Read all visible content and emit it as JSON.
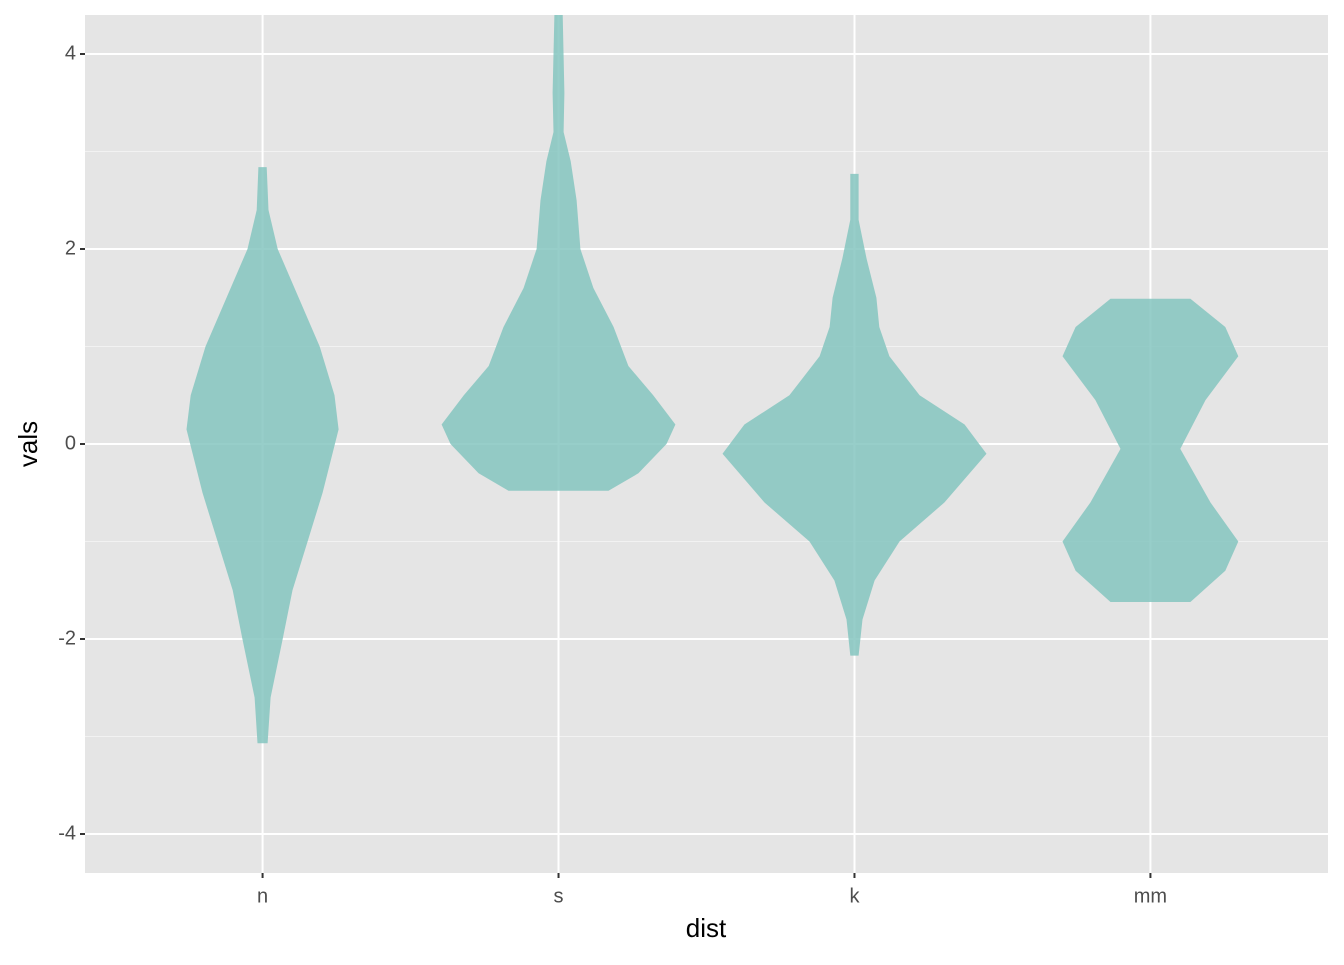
{
  "chart_data": {
    "type": "violin",
    "x_label": "dist",
    "y_label": "vals",
    "categories": [
      "n",
      "s",
      "k",
      "mm"
    ],
    "color": "#85c6bf",
    "violins": [
      {
        "y": [
          -3.07,
          -2.6,
          -2.0,
          -1.5,
          -1.0,
          -0.5,
          0.15,
          0.5,
          1.0,
          1.5,
          2.0,
          2.4,
          2.84
        ],
        "width": [
          0.017,
          0.027,
          0.068,
          0.101,
          0.152,
          0.203,
          0.257,
          0.243,
          0.193,
          0.122,
          0.051,
          0.02,
          0.014
        ]
      },
      {
        "y": [
          -0.48,
          -0.3,
          0,
          0.2,
          0.5,
          0.8,
          1.2,
          1.6,
          2.0,
          2.5,
          2.9,
          3.2,
          3.6,
          4.4
        ],
        "width": [
          0.169,
          0.27,
          0.365,
          0.395,
          0.32,
          0.236,
          0.186,
          0.118,
          0.074,
          0.061,
          0.041,
          0.017,
          0.02,
          0.014
        ]
      },
      {
        "y": [
          -2.17,
          -1.8,
          -1.4,
          -1.0,
          -0.6,
          -0.1,
          0.2,
          0.5,
          0.9,
          1.2,
          1.5,
          1.9,
          2.3,
          2.77
        ],
        "width": [
          0.014,
          0.027,
          0.068,
          0.152,
          0.304,
          0.446,
          0.372,
          0.22,
          0.118,
          0.084,
          0.074,
          0.041,
          0.014,
          0.014
        ]
      },
      {
        "y": [
          -1.62,
          -1.3,
          -1.0,
          -0.6,
          -0.05,
          0.45,
          0.9,
          1.2,
          1.49
        ],
        "width": [
          0.135,
          0.253,
          0.297,
          0.203,
          0.101,
          0.186,
          0.297,
          0.253,
          0.135
        ]
      }
    ],
    "ylim": [
      -4.4,
      4.4
    ],
    "yticks": [
      -4,
      -2,
      0,
      2,
      4
    ],
    "grid": true
  }
}
